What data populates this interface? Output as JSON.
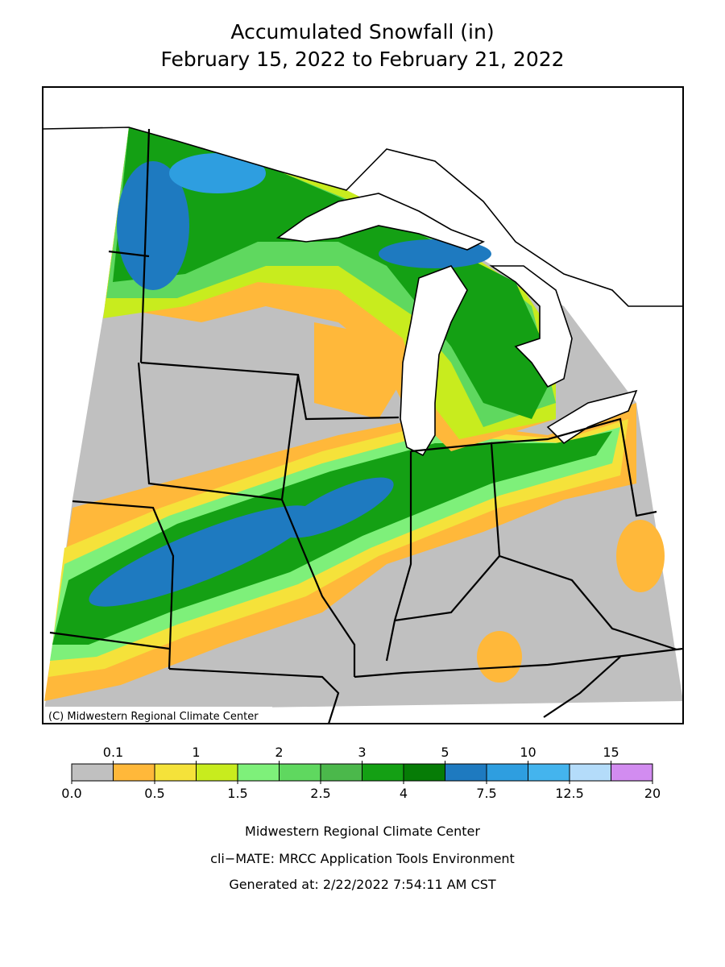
{
  "map": {
    "title": "Accumulated Snowfall (in)",
    "subtitle": "February 15, 2022 to February 21, 2022",
    "copyright": "(C) Midwestern Regional Climate Center",
    "legend": {
      "bins": [
        {
          "value": 0,
          "label": "0.0"
        },
        0.1,
        0.5,
        1,
        1.5,
        2,
        2.5,
        3,
        4,
        5,
        7.5,
        10,
        12.5,
        15,
        20
      ],
      "colors": [
        "#c0c0c0",
        "#ffb83a",
        "#f5e23a",
        "#c8ec1e",
        "#7ef07a",
        "#5fd85f",
        "#4bb84b",
        "#14a014",
        "#067c06",
        "#1e7ac0",
        "#2e9ee0",
        "#44b4ee",
        "#b4dcfa",
        "#d28cf0"
      ]
    },
    "footer": [
      "Midwestern Regional Climate Center",
      "cli−MATE: MRCC Application Tools Environment",
      "Generated at: 2/22/2022 7:54:11 AM CST"
    ]
  }
}
